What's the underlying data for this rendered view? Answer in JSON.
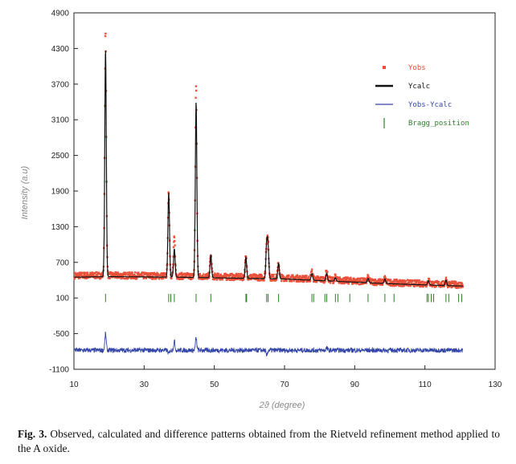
{
  "chart_data": {
    "type": "line",
    "title": "",
    "xlabel": "2ϑ (degree)",
    "ylabel": "Intensity (a.u)",
    "xlim": [
      10,
      130
    ],
    "ylim": [
      -1100,
      4900
    ],
    "x_ticks": [
      "10",
      "30",
      "50",
      "70",
      "90",
      "110",
      "130"
    ],
    "y_ticks": [
      "4900",
      "4300",
      "3700",
      "3100",
      "2500",
      "1900",
      "1300",
      "700",
      "100",
      "-500",
      "-1100"
    ],
    "legend_position": "top-right",
    "legend": [
      {
        "label": "Yobs",
        "color": "#e8503a",
        "marker": "dot"
      },
      {
        "label": "Ycalc",
        "color": "#111111",
        "marker": "line"
      },
      {
        "label": "Yobs-Ycalc",
        "color": "#3346a8",
        "marker": "line"
      },
      {
        "label": "Bragg_position",
        "color": "#2e7d2e",
        "marker": "tick"
      }
    ],
    "series": [
      {
        "name": "Yobs",
        "color": "#e8503a",
        "peaks": [
          {
            "x": 19.0,
            "height": 4560
          },
          {
            "x": 37.0,
            "height": 1880
          },
          {
            "x": 38.6,
            "height": 1100
          },
          {
            "x": 44.8,
            "height": 3700
          },
          {
            "x": 49.0,
            "height": 820
          },
          {
            "x": 59.0,
            "height": 780
          },
          {
            "x": 64.9,
            "height": 980
          },
          {
            "x": 65.3,
            "height": 960
          },
          {
            "x": 68.3,
            "height": 680
          },
          {
            "x": 77.8,
            "height": 540
          },
          {
            "x": 82.0,
            "height": 550
          },
          {
            "x": 84.5,
            "height": 450
          },
          {
            "x": 93.8,
            "height": 440
          },
          {
            "x": 98.6,
            "height": 430
          },
          {
            "x": 111.0,
            "height": 400
          },
          {
            "x": 116.0,
            "height": 410
          }
        ],
        "background": [
          {
            "x": 10,
            "y": 480
          },
          {
            "x": 20,
            "y": 480
          },
          {
            "x": 40,
            "y": 470
          },
          {
            "x": 70,
            "y": 440
          },
          {
            "x": 100,
            "y": 360
          },
          {
            "x": 121,
            "y": 320
          }
        ]
      },
      {
        "name": "Ycalc",
        "color": "#111111",
        "peaks": [
          {
            "x": 19.0,
            "height": 4280
          },
          {
            "x": 37.0,
            "height": 1870
          },
          {
            "x": 38.6,
            "height": 930
          },
          {
            "x": 44.8,
            "height": 3400
          },
          {
            "x": 49.0,
            "height": 820
          },
          {
            "x": 59.0,
            "height": 780
          },
          {
            "x": 64.9,
            "height": 970
          },
          {
            "x": 65.3,
            "height": 950
          },
          {
            "x": 68.3,
            "height": 680
          },
          {
            "x": 77.8,
            "height": 510
          },
          {
            "x": 82.0,
            "height": 510
          },
          {
            "x": 84.5,
            "height": 440
          },
          {
            "x": 93.8,
            "height": 430
          },
          {
            "x": 98.6,
            "height": 420
          },
          {
            "x": 111.0,
            "height": 390
          },
          {
            "x": 116.0,
            "height": 400
          }
        ],
        "background": [
          {
            "x": 10,
            "y": 450
          },
          {
            "x": 20,
            "y": 460
          },
          {
            "x": 40,
            "y": 450
          },
          {
            "x": 70,
            "y": 420
          },
          {
            "x": 100,
            "y": 340
          },
          {
            "x": 121,
            "y": 300
          }
        ]
      },
      {
        "name": "Yobs-Ycalc",
        "color": "#3346a8",
        "baseline": -780,
        "features": [
          {
            "x": 19.0,
            "dy": 280
          },
          {
            "x": 37.0,
            "dy": -60
          },
          {
            "x": 38.6,
            "dy": 150
          },
          {
            "x": 44.8,
            "dy": 200
          },
          {
            "x": 64.9,
            "dy": -90
          },
          {
            "x": 82.0,
            "dy": 40
          }
        ]
      }
    ],
    "bragg_positions": [
      19.0,
      37.0,
      37.6,
      38.6,
      44.8,
      49.0,
      59.0,
      59.2,
      64.9,
      65.3,
      68.3,
      77.8,
      78.3,
      81.5,
      82.0,
      84.5,
      85.2,
      88.6,
      93.8,
      98.6,
      101.2,
      110.6,
      111.0,
      111.8,
      112.5,
      116.0,
      116.8,
      119.6,
      120.5
    ]
  },
  "caption": {
    "fig_label": "Fig. 3.",
    "text": " Observed, calculated and difference patterns obtained from the Rietveld refinement method applied to the A oxide."
  }
}
